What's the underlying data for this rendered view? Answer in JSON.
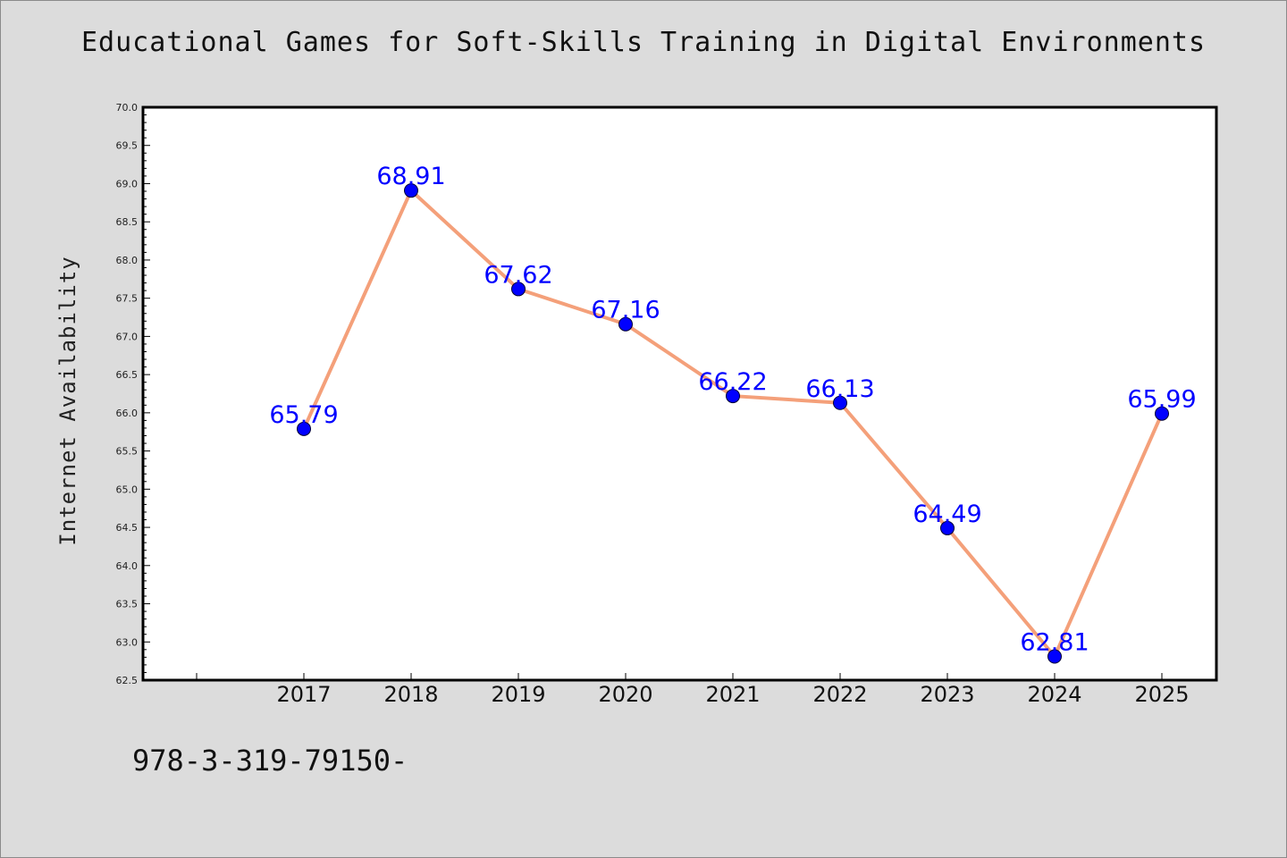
{
  "title": "Educational Games for Soft-Skills Training in Digital Environments",
  "footer_text": "978-3-319-79150-",
  "colors": {
    "background": "#dcdcdc",
    "plot_background": "#ffffff",
    "line": "#f4a07a",
    "marker": "#0000ff",
    "data_label": "#0000ff"
  },
  "chart_data": {
    "type": "line",
    "title": "Educational Games for Soft-Skills Training in Digital Environments",
    "xlabel": "",
    "ylabel": "Internet Availability",
    "ylim": [
      62.5,
      70.0
    ],
    "yticks": [
      "62.5",
      "63.0",
      "63.5",
      "64.0",
      "64.5",
      "65.0",
      "65.5",
      "66.0",
      "66.5",
      "67.0",
      "67.5",
      "68.0",
      "68.5",
      "69.0",
      "69.5",
      "70.0"
    ],
    "categories": [
      "2017",
      "2018",
      "2019",
      "2020",
      "2021",
      "2022",
      "2023",
      "2024",
      "2025"
    ],
    "series": [
      {
        "values": [
          65.79,
          68.91,
          67.62,
          67.16,
          66.22,
          66.13,
          64.49,
          62.81,
          65.99
        ],
        "labels": [
          "65.79",
          "68.91",
          "67.62",
          "67.16",
          "66.22",
          "66.13",
          "64.49",
          "62.81",
          "65.99"
        ]
      }
    ],
    "grid": false,
    "legend": "none"
  }
}
